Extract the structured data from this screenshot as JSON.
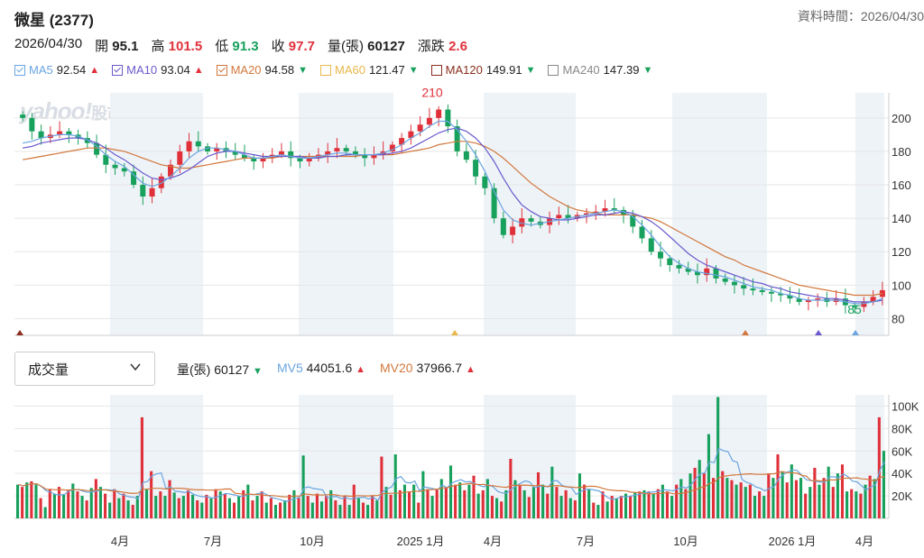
{
  "header": {
    "title": "微星 (2377)",
    "asof": "資料時間：2026/04/30"
  },
  "quote": {
    "date": "2026/04/30",
    "open_label": "開",
    "open": "95.1",
    "high_label": "高",
    "high": "101.5",
    "low_label": "低",
    "low": "91.3",
    "close_label": "收",
    "close": "97.7",
    "volume_label": "量(張)",
    "volume": "60127",
    "change_label": "漲跌",
    "change": "2.6"
  },
  "ma": [
    {
      "label": "MA5",
      "value": "92.54",
      "dir": "up",
      "color": "#6aa5e0",
      "checked": true
    },
    {
      "label": "MA10",
      "value": "93.04",
      "dir": "up",
      "color": "#6a5acd",
      "checked": true
    },
    {
      "label": "MA20",
      "value": "94.58",
      "dir": "down",
      "color": "#d2783c",
      "checked": true
    },
    {
      "label": "MA60",
      "value": "121.47",
      "dir": "down",
      "color": "#e8b84a",
      "checked": false
    },
    {
      "label": "MA120",
      "value": "149.91",
      "dir": "down",
      "color": "#8b2e1e",
      "checked": false
    },
    {
      "label": "MA240",
      "value": "147.39",
      "dir": "down",
      "color": "#888888",
      "checked": false
    }
  ],
  "watermark": {
    "brand": "yahoo!",
    "sub": "股市"
  },
  "volume_panel": {
    "select_label": "成交量",
    "vol_label": "量(張)",
    "vol_value": "60127",
    "vol_dir": "down",
    "mv5_label": "MV5",
    "mv5_value": "44051.6",
    "mv5_dir": "up",
    "mv20_label": "MV20",
    "mv20_value": "37966.7",
    "mv20_dir": "up"
  },
  "chart_data": [
    {
      "type": "candlestick",
      "y_ticks": [
        "200",
        "180",
        "160",
        "140",
        "120",
        "100",
        "80"
      ],
      "ylim": [
        70,
        215
      ],
      "x_ticks": [
        "4月",
        "7月",
        "10月",
        "2025 1月",
        "4月",
        "7月",
        "10月",
        "2026 1月",
        "4月"
      ],
      "annotations": {
        "high_label": "210",
        "low_label": "85"
      },
      "close_path": [
        200,
        192,
        188,
        190,
        192,
        190,
        188,
        185,
        178,
        172,
        170,
        168,
        160,
        153,
        158,
        165,
        172,
        180,
        186,
        183,
        180,
        182,
        180,
        178,
        176,
        174,
        176,
        178,
        180,
        176,
        174,
        176,
        178,
        180,
        182,
        180,
        178,
        176,
        178,
        180,
        184,
        188,
        192,
        196,
        200,
        205,
        195,
        180,
        175,
        165,
        158,
        140,
        130,
        135,
        140,
        138,
        136,
        140,
        142,
        140,
        142,
        143,
        144,
        146,
        145,
        142,
        135,
        128,
        120,
        116,
        112,
        110,
        108,
        106,
        110,
        104,
        102,
        100,
        98,
        97,
        96,
        95,
        94,
        92,
        90,
        91,
        92,
        90,
        92,
        88,
        87,
        90,
        93,
        97
      ],
      "ma5_path": [
        185,
        186,
        188,
        189,
        190,
        190,
        189,
        187,
        183,
        178,
        174,
        171,
        166,
        161,
        159,
        161,
        165,
        170,
        176,
        180,
        182,
        182,
        181,
        180,
        178,
        176,
        176,
        177,
        178,
        177,
        176,
        176,
        177,
        178,
        179,
        179,
        178,
        178,
        178,
        179,
        181,
        184,
        188,
        191,
        195,
        198,
        198,
        193,
        186,
        178,
        168,
        156,
        145,
        139,
        137,
        136,
        137,
        138,
        139,
        140,
        141,
        142,
        143,
        144,
        145,
        144,
        141,
        136,
        130,
        123,
        117,
        113,
        110,
        108,
        107,
        106,
        105,
        103,
        101,
        99,
        98,
        97,
        95,
        94,
        92,
        91,
        91,
        91,
        91,
        90,
        89,
        89,
        90,
        92
      ],
      "ma10_path": [
        182,
        183,
        185,
        186,
        187,
        188,
        188,
        187,
        185,
        182,
        178,
        175,
        171,
        167,
        164,
        163,
        164,
        166,
        169,
        173,
        177,
        179,
        180,
        180,
        179,
        178,
        177,
        177,
        177,
        177,
        177,
        176,
        176,
        177,
        177,
        178,
        178,
        178,
        178,
        178,
        179,
        180,
        182,
        185,
        188,
        191,
        193,
        194,
        192,
        188,
        182,
        174,
        164,
        155,
        148,
        144,
        141,
        140,
        139,
        139,
        140,
        141,
        142,
        142,
        143,
        144,
        143,
        141,
        138,
        134,
        129,
        124,
        119,
        115,
        112,
        110,
        108,
        106,
        104,
        102,
        101,
        99,
        98,
        96,
        95,
        94,
        93,
        92,
        92,
        91,
        90,
        90,
        90,
        91
      ],
      "ma20_path": [
        175,
        176,
        177,
        178,
        179,
        180,
        181,
        182,
        182,
        182,
        181,
        180,
        178,
        176,
        174,
        172,
        171,
        170,
        170,
        171,
        172,
        173,
        174,
        175,
        176,
        176,
        176,
        176,
        177,
        177,
        177,
        177,
        177,
        177,
        177,
        177,
        177,
        178,
        178,
        178,
        178,
        179,
        180,
        181,
        182,
        184,
        185,
        186,
        186,
        185,
        183,
        180,
        176,
        171,
        166,
        161,
        157,
        153,
        150,
        147,
        145,
        144,
        143,
        142,
        142,
        142,
        142,
        141,
        140,
        138,
        135,
        132,
        129,
        126,
        123,
        120,
        117,
        115,
        112,
        110,
        108,
        106,
        104,
        102,
        100,
        99,
        98,
        97,
        96,
        95,
        94,
        94,
        94,
        95
      ]
    },
    {
      "type": "bar",
      "y_ticks": [
        "100K",
        "80K",
        "60K",
        "40K",
        "20K"
      ],
      "ylim": [
        0,
        110000
      ],
      "x_ticks": [
        "4月",
        "7月",
        "10月",
        "2025 1月",
        "4月",
        "7月",
        "10月",
        "2026 1月",
        "4月"
      ],
      "values": [
        30000,
        28000,
        32000,
        33000,
        30000,
        18000,
        10000,
        26000,
        22000,
        28000,
        21000,
        25000,
        31000,
        24000,
        20000,
        16000,
        27000,
        35000,
        28000,
        22000,
        14000,
        26000,
        18000,
        22000,
        16000,
        12000,
        20000,
        90000,
        26000,
        42000,
        20000,
        24000,
        20000,
        34000,
        23000,
        18000,
        20000,
        25000,
        21000,
        16000,
        14000,
        21000,
        18000,
        26000,
        24000,
        22000,
        18000,
        14000,
        20000,
        25000,
        30000,
        16000,
        20000,
        24000,
        14000,
        18000,
        12000,
        14000,
        16000,
        21000,
        25000,
        18000,
        56000,
        20000,
        14000,
        22000,
        15000,
        20000,
        25000,
        16000,
        12000,
        20000,
        12000,
        30000,
        18000,
        14000,
        12000,
        20000,
        16000,
        55000,
        28000,
        21000,
        57000,
        25000,
        30000,
        24000,
        30000,
        14000,
        42000,
        26000,
        20000,
        26000,
        35000,
        28000,
        47000,
        30000,
        32000,
        25000,
        30000,
        38000,
        22000,
        25000,
        35000,
        20000,
        18000,
        15000,
        25000,
        53000,
        34000,
        30000,
        25000,
        19000,
        28000,
        41000,
        30000,
        22000,
        46000,
        28000,
        20000,
        25000,
        18000,
        16000,
        40000,
        30000,
        26000,
        14000,
        12000,
        24000,
        15000,
        20000,
        18000,
        20000,
        22000,
        20000,
        23000,
        24000,
        25000,
        24000,
        22000,
        26000,
        30000,
        24000,
        20000,
        30000,
        35000,
        26000,
        40000,
        45000,
        52000,
        40000,
        75000,
        36000,
        108000,
        42000,
        36000,
        34000,
        30000,
        32000,
        28000,
        30000,
        20000,
        24000,
        20000,
        40000,
        36000,
        57000,
        42000,
        32000,
        48000,
        34000,
        36000,
        22000,
        28000,
        45000,
        30000,
        36000,
        46000,
        28000,
        40000,
        48000,
        24000,
        26000,
        24000,
        22000,
        30000,
        38000,
        35000,
        90000,
        60127
      ],
      "mv_note": ""
    }
  ]
}
